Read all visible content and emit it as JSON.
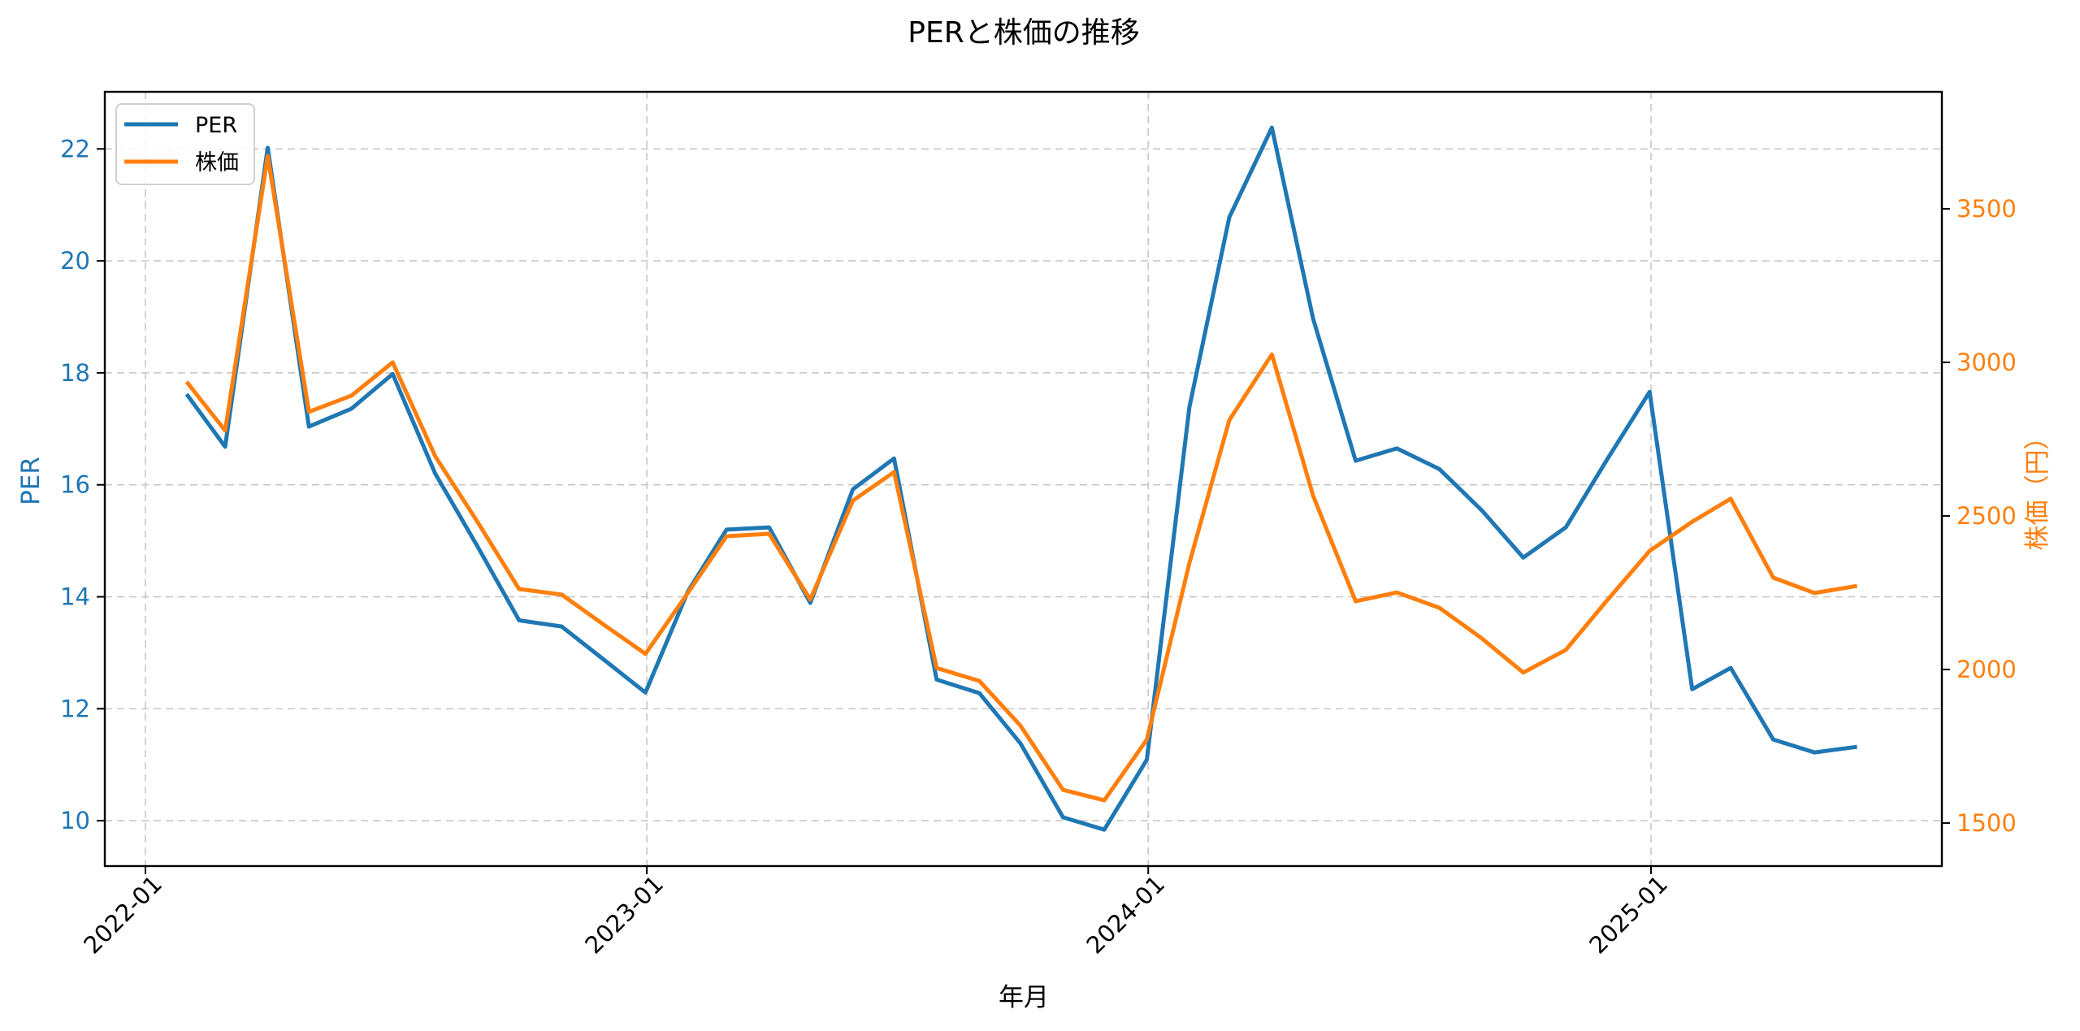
{
  "chart_data": {
    "type": "line",
    "title": "PERと株価の推移",
    "xlabel": "年月",
    "ylabel_left": "PER",
    "ylabel_right": "株価（円）",
    "x_tick_labels": [
      "2022-01",
      "2023-01",
      "2024-01",
      "2025-01"
    ],
    "y_left_ticks": [
      10,
      12,
      14,
      16,
      18,
      20,
      22
    ],
    "y_right_ticks": [
      1500,
      2000,
      2500,
      3000,
      3500
    ],
    "ylim_left": [
      9.19,
      23.02
    ],
    "ylim_right": [
      1360,
      3881
    ],
    "grid": true,
    "legend_position": "upper left",
    "colors": {
      "PER": "#1f77b4",
      "株価": "#ff7f0e"
    },
    "x": [
      "2022-01-31",
      "2022-02-28",
      "2022-03-31",
      "2022-04-30",
      "2022-05-31",
      "2022-06-30",
      "2022-07-31",
      "2022-08-31",
      "2022-09-30",
      "2022-10-31",
      "2022-11-30",
      "2022-12-31",
      "2023-01-31",
      "2023-02-28",
      "2023-03-31",
      "2023-04-30",
      "2023-05-31",
      "2023-06-30",
      "2023-07-31",
      "2023-08-31",
      "2023-09-30",
      "2023-10-31",
      "2023-11-30",
      "2023-12-31",
      "2024-01-31",
      "2024-02-29",
      "2024-03-31",
      "2024-04-30",
      "2024-05-31",
      "2024-06-30",
      "2024-07-31",
      "2024-08-31",
      "2024-09-30",
      "2024-10-31",
      "2024-11-30",
      "2024-12-31",
      "2025-01-31",
      "2025-02-28",
      "2025-03-31",
      "2025-04-30",
      "2025-05-31"
    ],
    "series": [
      {
        "name": "PER",
        "axis": "left",
        "values": [
          17.62,
          16.68,
          22.02,
          17.04,
          17.36,
          17.98,
          16.2,
          14.89,
          13.58,
          13.47,
          12.89,
          12.29,
          14.1,
          15.2,
          15.24,
          13.89,
          15.92,
          16.47,
          12.52,
          12.28,
          11.38,
          10.06,
          9.84,
          11.09,
          17.39,
          20.78,
          22.38,
          18.97,
          16.43,
          16.65,
          16.28,
          15.54,
          14.7,
          15.24,
          16.45,
          17.66,
          12.35,
          12.73,
          11.45,
          11.22,
          11.32
        ]
      },
      {
        "name": "株価",
        "axis": "right",
        "values": [
          2937,
          2778,
          3672,
          2839,
          2892,
          3000,
          2694,
          2479,
          2262,
          2244,
          2148,
          2051,
          2250,
          2434,
          2442,
          2228,
          2550,
          2643,
          2005,
          1963,
          1817,
          1608,
          1574,
          1772,
          2347,
          2812,
          3026,
          2566,
          2222,
          2251,
          2201,
          2101,
          1990,
          2064,
          2225,
          2386,
          2481,
          2556,
          2299,
          2249,
          2272
        ]
      }
    ]
  },
  "legend": {
    "items": [
      {
        "label": "PER",
        "color": "#1f77b4"
      },
      {
        "label": "株価",
        "color": "#ff7f0e"
      }
    ]
  }
}
